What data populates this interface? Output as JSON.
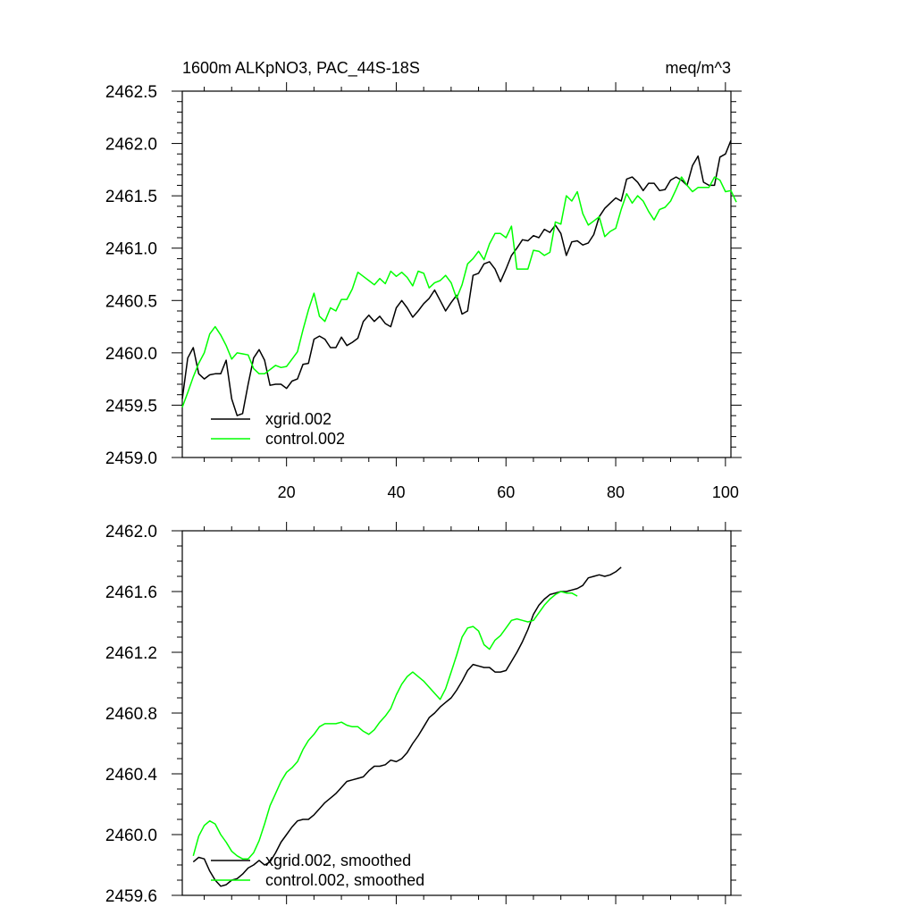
{
  "chart_data": [
    {
      "type": "line",
      "title_left": "1600m ALKpNO3, PAC_44S-18S",
      "title_right": "meq/m^3",
      "xlim": [
        1,
        101
      ],
      "ylim": [
        2459.0,
        2462.5
      ],
      "xticks": [
        20,
        40,
        60,
        80,
        100
      ],
      "xtick_labels": [
        "20",
        "40",
        "60",
        "80",
        "100"
      ],
      "yticks": [
        2459.0,
        2459.5,
        2460.0,
        2460.5,
        2461.0,
        2461.5,
        2462.0,
        2462.5
      ],
      "ytick_labels": [
        "2459.0",
        "2459.5",
        "2460.0",
        "2460.5",
        "2461.0",
        "2461.5",
        "2462.0",
        "2462.5"
      ],
      "x_start": 1,
      "series": [
        {
          "name": "xgrid.002",
          "color": "#000000",
          "values": [
            2459.56,
            2459.95,
            2460.05,
            2459.8,
            2459.75,
            2459.79,
            2459.8,
            2459.8,
            2459.93,
            2459.56,
            2459.4,
            2459.42,
            2459.7,
            2459.95,
            2460.03,
            2459.93,
            2459.69,
            2459.7,
            2459.7,
            2459.66,
            2459.73,
            2459.75,
            2459.89,
            2459.9,
            2460.13,
            2460.16,
            2460.13,
            2460.05,
            2460.05,
            2460.15,
            2460.07,
            2460.1,
            2460.14,
            2460.3,
            2460.36,
            2460.3,
            2460.35,
            2460.28,
            2460.25,
            2460.43,
            2460.5,
            2460.43,
            2460.34,
            2460.4,
            2460.47,
            2460.52,
            2460.6,
            2460.5,
            2460.4,
            2460.48,
            2460.55,
            2460.37,
            2460.4,
            2460.74,
            2460.76,
            2460.85,
            2460.87,
            2460.8,
            2460.68,
            2460.8,
            2460.93,
            2461.0,
            2461.08,
            2461.07,
            2461.12,
            2461.1,
            2461.18,
            2461.15,
            2461.22,
            2461.14,
            2460.93,
            2461.06,
            2461.07,
            2461.03,
            2461.05,
            2461.13,
            2461.3,
            2461.38,
            2461.43,
            2461.48,
            2461.45,
            2461.66,
            2461.68,
            2461.63,
            2461.55,
            2461.62,
            2461.62,
            2461.55,
            2461.56,
            2461.65,
            2461.68,
            2461.65,
            2461.6,
            2461.79,
            2461.88,
            2461.63,
            2461.6,
            2461.6,
            2461.87,
            2461.9,
            2462.03
          ]
        },
        {
          "name": "control.002",
          "color": "#00ff00",
          "values": [
            2459.48,
            2459.62,
            2459.77,
            2459.9,
            2460.0,
            2460.18,
            2460.25,
            2460.17,
            2460.07,
            2459.94,
            2460.0,
            2459.99,
            2459.98,
            2459.85,
            2459.8,
            2459.8,
            2459.84,
            2459.88,
            2459.86,
            2459.87,
            2459.94,
            2460.01,
            2460.22,
            2460.41,
            2460.57,
            2460.35,
            2460.3,
            2460.43,
            2460.4,
            2460.51,
            2460.51,
            2460.61,
            2460.77,
            2460.73,
            2460.69,
            2460.65,
            2460.71,
            2460.66,
            2460.78,
            2460.73,
            2460.77,
            2460.72,
            2460.64,
            2460.78,
            2460.76,
            2460.62,
            2460.67,
            2460.69,
            2460.74,
            2460.67,
            2460.52,
            2460.65,
            2460.85,
            2460.9,
            2460.97,
            2460.89,
            2461.04,
            2461.14,
            2461.14,
            2461.1,
            2461.21,
            2460.8,
            2460.8,
            2460.8,
            2460.98,
            2460.97,
            2460.93,
            2460.96,
            2461.25,
            2461.23,
            2461.5,
            2461.45,
            2461.54,
            2461.33,
            2461.22,
            2461.26,
            2461.3,
            2461.11,
            2461.16,
            2461.19,
            2461.37,
            2461.52,
            2461.43,
            2461.5,
            2461.45,
            2461.35,
            2461.27,
            2461.37,
            2461.39,
            2461.45,
            2461.56,
            2461.68,
            2461.6,
            2461.54,
            2461.58,
            2461.58,
            2461.58,
            2461.68,
            2461.65,
            2461.54,
            2461.55,
            2461.44
          ]
        }
      ],
      "legend_position": "bottom-left"
    },
    {
      "type": "line",
      "title_left": "",
      "title_right": "",
      "xlim": [
        1,
        101
      ],
      "ylim": [
        2459.6,
        2462.0
      ],
      "xticks": [
        20,
        40,
        60,
        80,
        100
      ],
      "xtick_labels": [],
      "yticks": [
        2459.6,
        2460.0,
        2460.4,
        2460.8,
        2461.2,
        2461.6,
        2462.0
      ],
      "ytick_labels": [
        "2459.6",
        "2460.0",
        "2460.4",
        "2460.8",
        "2461.2",
        "2461.6",
        "2462.0"
      ],
      "x_start": 3,
      "series": [
        {
          "name": "xgrid.002, smoothed",
          "color": "#000000",
          "values": [
            2459.82,
            2459.85,
            2459.84,
            2459.76,
            2459.7,
            2459.66,
            2459.67,
            2459.7,
            2459.71,
            2459.74,
            2459.78,
            2459.8,
            2459.83,
            2459.8,
            2459.82,
            2459.88,
            2459.95,
            2460.0,
            2460.05,
            2460.09,
            2460.1,
            2460.1,
            2460.13,
            2460.17,
            2460.21,
            2460.24,
            2460.27,
            2460.31,
            2460.35,
            2460.36,
            2460.37,
            2460.38,
            2460.42,
            2460.45,
            2460.45,
            2460.46,
            2460.49,
            2460.48,
            2460.5,
            2460.54,
            2460.6,
            2460.65,
            2460.71,
            2460.77,
            2460.8,
            2460.84,
            2460.87,
            2460.9,
            2460.95,
            2461.01,
            2461.08,
            2461.12,
            2461.11,
            2461.1,
            2461.1,
            2461.07,
            2461.07,
            2461.08,
            2461.14,
            2461.2,
            2461.27,
            2461.35,
            2461.45,
            2461.51,
            2461.55,
            2461.58,
            2461.59,
            2461.6,
            2461.6,
            2461.61,
            2461.62,
            2461.64,
            2461.69,
            2461.7,
            2461.71,
            2461.7,
            2461.71,
            2461.73,
            2461.76
          ]
        },
        {
          "name": "control.002, smoothed",
          "color": "#00ff00",
          "values": [
            2459.86,
            2459.99,
            2460.06,
            2460.09,
            2460.07,
            2460.0,
            2459.95,
            2459.89,
            2459.86,
            2459.84,
            2459.84,
            2459.88,
            2459.96,
            2460.07,
            2460.19,
            2460.27,
            2460.35,
            2460.41,
            2460.44,
            2460.48,
            2460.56,
            2460.62,
            2460.66,
            2460.71,
            2460.73,
            2460.73,
            2460.73,
            2460.74,
            2460.72,
            2460.71,
            2460.71,
            2460.68,
            2460.66,
            2460.69,
            2460.74,
            2460.78,
            2460.83,
            2460.92,
            2460.99,
            2461.04,
            2461.07,
            2461.04,
            2461.01,
            2460.97,
            2460.93,
            2460.89,
            2460.96,
            2461.07,
            2461.18,
            2461.3,
            2461.36,
            2461.37,
            2461.34,
            2461.25,
            2461.22,
            2461.28,
            2461.31,
            2461.36,
            2461.41,
            2461.42,
            2461.41,
            2461.4,
            2461.41,
            2461.46,
            2461.51,
            2461.55,
            2461.58,
            2461.6,
            2461.59,
            2461.59,
            2461.57
          ]
        }
      ],
      "legend_position": "bottom-left"
    }
  ]
}
